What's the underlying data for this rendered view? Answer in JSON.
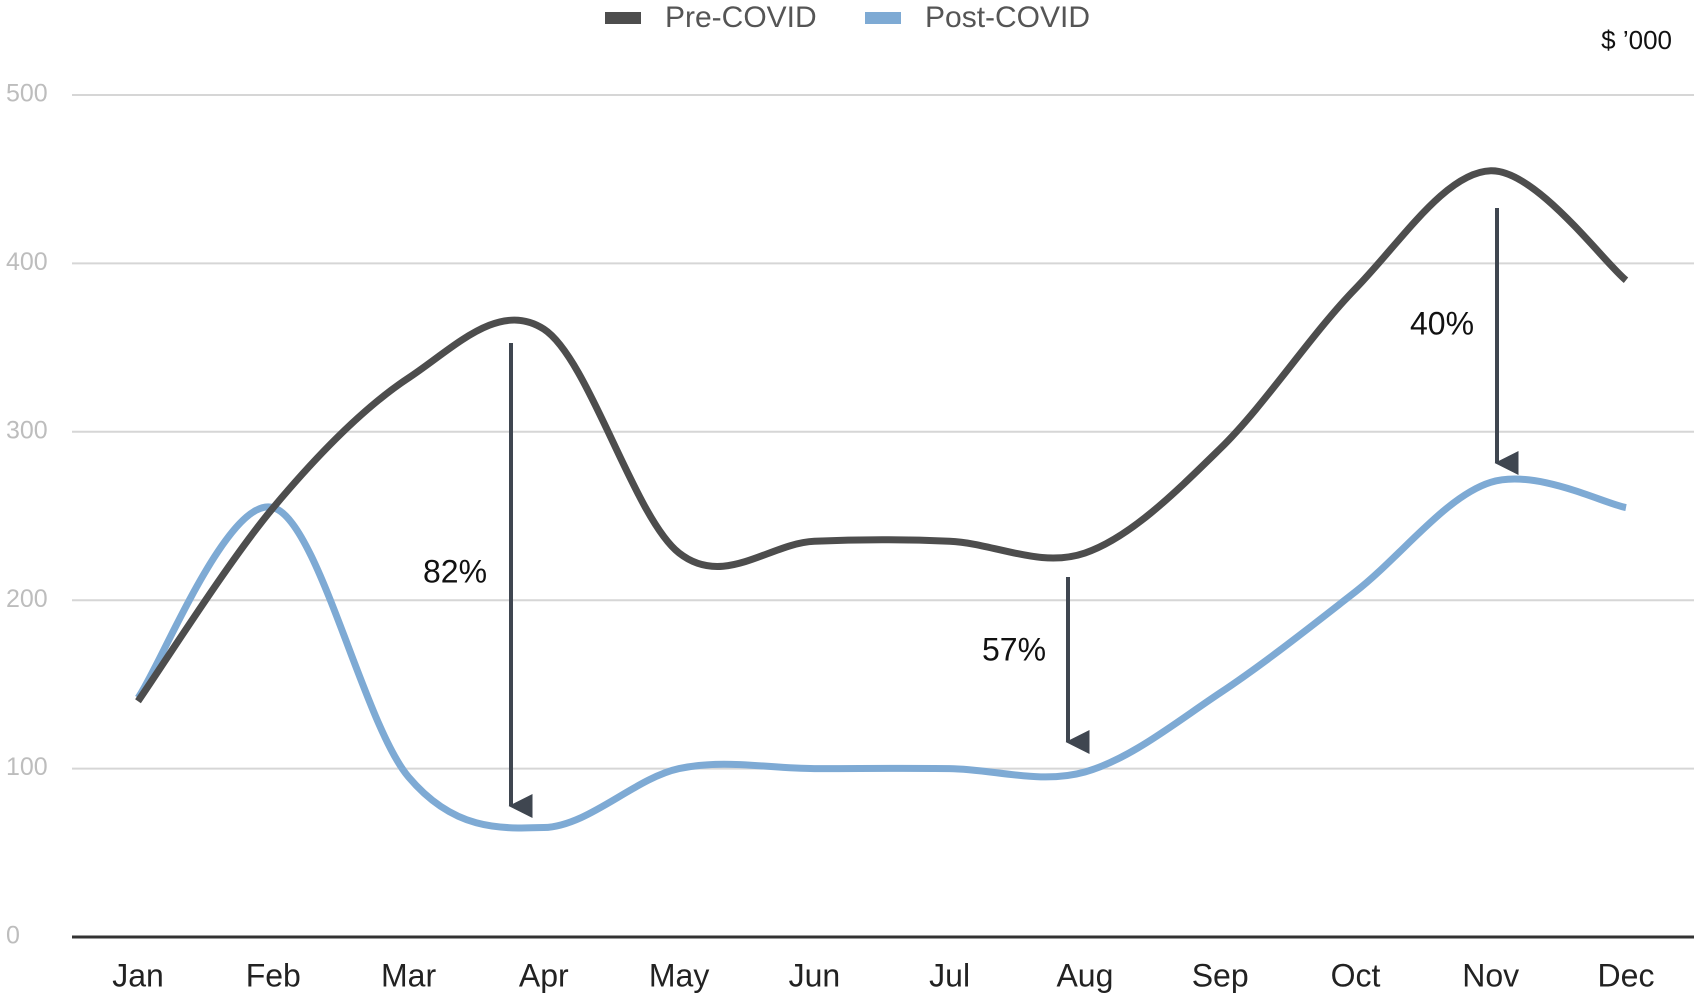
{
  "chart_data": {
    "type": "line",
    "unit_label": "$ ’000",
    "categories": [
      "Jan",
      "Feb",
      "Mar",
      "Apr",
      "May",
      "Jun",
      "Jul",
      "Aug",
      "Sep",
      "Oct",
      "Nov",
      "Dec"
    ],
    "series": [
      {
        "name": "Pre-COVID",
        "color": "#4d4d4d",
        "values": [
          140,
          255,
          332,
          361,
          228,
          235,
          235,
          228,
          290,
          385,
          455,
          390
        ]
      },
      {
        "name": "Post-COVID",
        "color": "#7eaad4",
        "values": [
          142,
          255,
          95,
          65,
          100,
          100,
          100,
          98,
          145,
          205,
          270,
          255
        ]
      }
    ],
    "annotations": [
      "82%",
      "57%",
      "40%"
    ],
    "ylim": [
      0,
      500
    ],
    "yticks": [
      0,
      100,
      200,
      300,
      400,
      500
    ],
    "grid": true,
    "legend": "top"
  }
}
